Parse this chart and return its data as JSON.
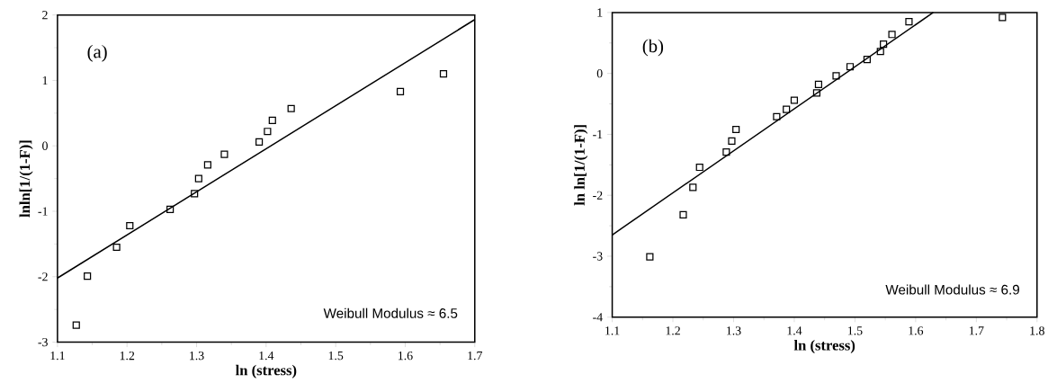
{
  "chart_data": [
    {
      "type": "scatter",
      "title": "(a)",
      "xlabel": "ln (stress)",
      "ylabel": "lnln[1/(1-F)]",
      "xlim": [
        1.1,
        1.7
      ],
      "ylim": [
        -3,
        2
      ],
      "xticks": [
        1.1,
        1.2,
        1.3,
        1.4,
        1.5,
        1.6,
        1.7
      ],
      "yticks": [
        -3,
        -2,
        -1,
        0,
        1,
        2
      ],
      "annotations": [
        "Weibull Modulus ≈ 6.5"
      ],
      "series": [
        {
          "marker": "square",
          "color": "#000000",
          "x": [
            1.127,
            1.143,
            1.185,
            1.204,
            1.262,
            1.297,
            1.303,
            1.316,
            1.34,
            1.39,
            1.402,
            1.409,
            1.436,
            1.593,
            1.655
          ],
          "values": [
            -2.74,
            -1.99,
            -1.55,
            -1.22,
            -0.97,
            -0.73,
            -0.5,
            -0.29,
            -0.13,
            0.06,
            0.22,
            0.39,
            0.57,
            0.83,
            1.1
          ]
        },
        {
          "type": "line",
          "marker": "none",
          "color": "#000000",
          "x": [
            1.1,
            1.7
          ],
          "values": [
            -2.02,
            1.93
          ]
        }
      ]
    },
    {
      "type": "scatter",
      "title": "(b)",
      "xlabel": "ln (stress)",
      "ylabel": "ln ln[1/(1-F)]",
      "xlim": [
        1.1,
        1.8
      ],
      "ylim": [
        -4,
        1
      ],
      "xticks": [
        1.1,
        1.2,
        1.3,
        1.4,
        1.5,
        1.6,
        1.7,
        1.8
      ],
      "yticks": [
        -4,
        -3,
        -2,
        -1,
        0,
        1
      ],
      "annotations": [
        "Weibull Modulus ≈ 6.9"
      ],
      "series": [
        {
          "marker": "square",
          "color": "#000000",
          "x": [
            1.162,
            1.217,
            1.233,
            1.244,
            1.288,
            1.297,
            1.304,
            1.371,
            1.387,
            1.4,
            1.437,
            1.44,
            1.469,
            1.492,
            1.52,
            1.542,
            1.547,
            1.561,
            1.589,
            1.743
          ],
          "values": [
            -3.01,
            -2.32,
            -1.87,
            -1.54,
            -1.29,
            -1.11,
            -0.92,
            -0.71,
            -0.59,
            -0.44,
            -0.32,
            -0.18,
            -0.04,
            0.11,
            0.23,
            0.36,
            0.48,
            0.64,
            0.85,
            0.92
          ]
        },
        {
          "type": "line",
          "marker": "none",
          "color": "#000000",
          "x": [
            1.1,
            1.629
          ],
          "values": [
            -2.65,
            1.0
          ]
        }
      ]
    }
  ]
}
